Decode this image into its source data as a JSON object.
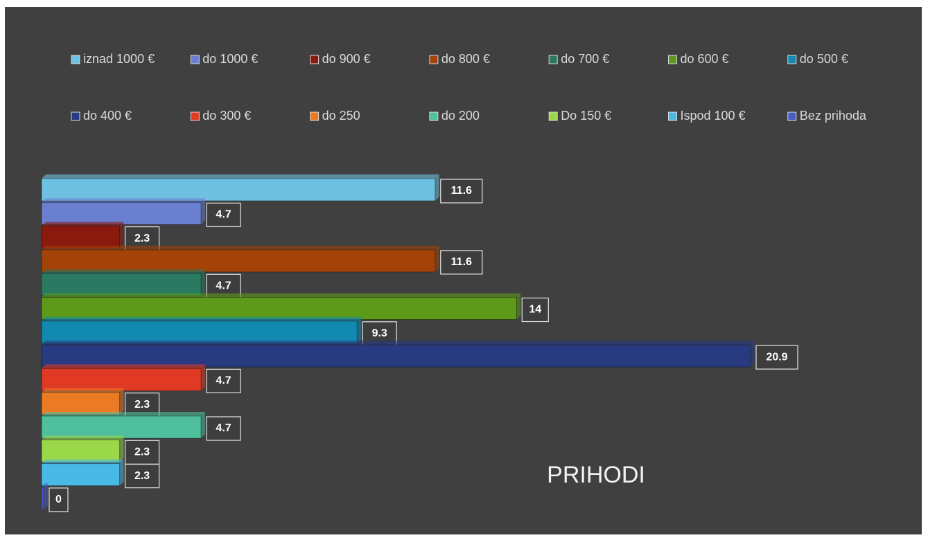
{
  "chart_data": {
    "type": "bar",
    "title": "PRIHODI",
    "series": [
      {
        "name": "iznad 1000 €",
        "color": "#6ec1e0",
        "values": [
          11.6
        ]
      },
      {
        "name": "do 1000 €",
        "color": "#6a7fd0",
        "values": [
          4.7
        ]
      },
      {
        "name": "do 900 €",
        "color": "#8b1a0e",
        "values": [
          2.3
        ]
      },
      {
        "name": "do 800 €",
        "color": "#a34308",
        "values": [
          11.6
        ]
      },
      {
        "name": "do 700 €",
        "color": "#2a7a62",
        "values": [
          4.7
        ]
      },
      {
        "name": "do 600 €",
        "color": "#5e9a1a",
        "values": [
          14
        ]
      },
      {
        "name": "do 500 €",
        "color": "#1189b0",
        "values": [
          9.3
        ]
      },
      {
        "name": "do 400 €",
        "color": "#283a80",
        "values": [
          20.9
        ]
      },
      {
        "name": "do 300 €",
        "color": "#e03a24",
        "values": [
          4.7
        ]
      },
      {
        "name": "do 250",
        "color": "#eb7a24",
        "values": [
          2.3
        ]
      },
      {
        "name": "do 200",
        "color": "#4fbf9d",
        "values": [
          4.7
        ]
      },
      {
        "name": "Do 150 €",
        "color": "#9ad84a",
        "values": [
          2.3
        ]
      },
      {
        "name": "Ispod 100 €",
        "color": "#49b9e6",
        "values": [
          2.3
        ]
      },
      {
        "name": "Bez prihoda",
        "color": "#4a5cc4",
        "values": [
          0
        ]
      }
    ]
  }
}
